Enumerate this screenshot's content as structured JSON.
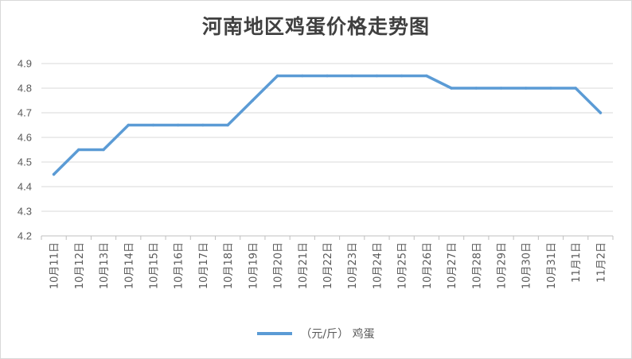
{
  "chart_data": {
    "type": "line",
    "title": "河南地区鸡蛋价格走势图",
    "categories": [
      "10月11日",
      "10月12日",
      "10月13日",
      "10月14日",
      "10月15日",
      "10月16日",
      "10月17日",
      "10月18日",
      "10月19日",
      "10月20日",
      "10月21日",
      "10月22日",
      "10月23日",
      "10月24日",
      "10月25日",
      "10月26日",
      "10月27日",
      "10月28日",
      "10月29日",
      "10月30日",
      "10月31日",
      "11月1日",
      "11月2日"
    ],
    "series": [
      {
        "name": "（元/斤） 鸡蛋",
        "values": [
          4.45,
          4.55,
          4.55,
          4.65,
          4.65,
          4.65,
          4.65,
          4.65,
          4.75,
          4.85,
          4.85,
          4.85,
          4.85,
          4.85,
          4.85,
          4.85,
          4.8,
          4.8,
          4.8,
          4.8,
          4.8,
          4.8,
          4.7
        ]
      }
    ],
    "ylim": [
      4.2,
      4.9
    ],
    "yticks": [
      "4.2",
      "4.3",
      "4.4",
      "4.5",
      "4.6",
      "4.7",
      "4.8",
      "4.9"
    ],
    "xlabel": "",
    "ylabel": "",
    "grid": true,
    "legend_position": "bottom",
    "colors": {
      "series": "#5b9bd5",
      "grid": "#d9d9d9",
      "axis": "#bfbfbf",
      "text": "#595959"
    }
  }
}
